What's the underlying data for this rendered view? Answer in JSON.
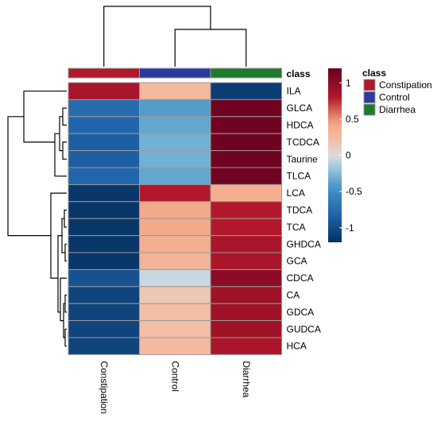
{
  "chart_data": {
    "type": "heatmap",
    "title": "",
    "columns": [
      "Constipation",
      "Control",
      "Diarrhea"
    ],
    "rows": [
      "ILA",
      "GLCA",
      "HDCA",
      "TCDCA",
      "Taurine",
      "TLCA",
      "LCA",
      "TDCA",
      "TCA",
      "GHDCA",
      "GCA",
      "CDCA",
      "CA",
      "GDCA",
      "GUDCA",
      "HCA"
    ],
    "values": [
      [
        0.85,
        0.25,
        -1.1
      ],
      [
        -0.75,
        -0.4,
        1.15
      ],
      [
        -0.8,
        -0.35,
        1.15
      ],
      [
        -0.85,
        -0.3,
        1.15
      ],
      [
        -0.85,
        -0.3,
        1.15
      ],
      [
        -0.8,
        -0.35,
        1.15
      ],
      [
        -1.15,
        0.8,
        0.35
      ],
      [
        -1.15,
        0.4,
        0.8
      ],
      [
        -1.15,
        0.4,
        0.8
      ],
      [
        -1.15,
        0.35,
        0.85
      ],
      [
        -1.15,
        0.3,
        0.85
      ],
      [
        -0.95,
        -0.05,
        1.0
      ],
      [
        -1.05,
        0.15,
        0.9
      ],
      [
        -1.05,
        0.2,
        0.9
      ],
      [
        -1.05,
        0.2,
        0.9
      ],
      [
        -1.05,
        0.25,
        0.85
      ]
    ],
    "annotation": {
      "header": "class",
      "legend_title": "class",
      "items": [
        {
          "label": "Constipation",
          "color": "#b2182b"
        },
        {
          "label": "Control",
          "color": "#2b3a9e"
        },
        {
          "label": "Diarrhea",
          "color": "#1f7a2e"
        }
      ]
    },
    "colorbar": {
      "range": [
        -1.2,
        1.2
      ],
      "ticks": [
        {
          "label": "1",
          "value": 1
        },
        {
          "label": "0.5",
          "value": 0.5
        },
        {
          "label": "0",
          "value": 0
        },
        {
          "label": "-0.5",
          "value": -0.5
        },
        {
          "label": "-1",
          "value": -1
        }
      ],
      "palette": "RdBu (reversed)"
    },
    "dendrograms": {
      "rows": "left",
      "columns": "top"
    }
  }
}
